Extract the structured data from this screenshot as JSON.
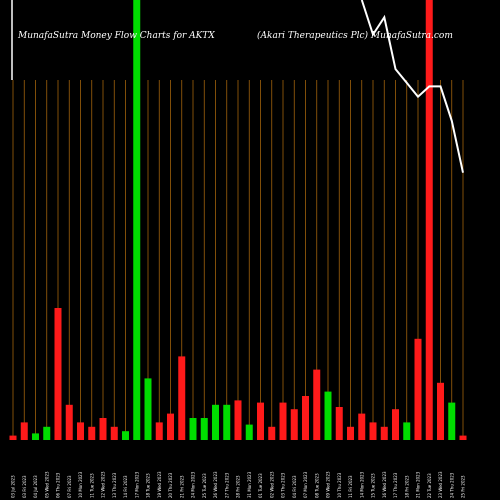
{
  "chart_data": {
    "type": "bar",
    "title_left": "MunafaSutra  Money Flow  Charts for AKTX",
    "title_right": "(Akari   Therapeutics Plc) MunafaSutra.com",
    "ylim": [
      0,
      100
    ],
    "grid": true,
    "colors": {
      "background": "#000000",
      "up": "#00dd00",
      "down": "#ff1a1a",
      "grid": "#a0620c",
      "line": "#ffffff"
    },
    "categories": [
      "03 Jul 2023",
      "03 Fri 2023",
      "04 Jul 2023",
      "05 Wed 2023",
      "06 Thu 2023",
      "07 Fri 2023",
      "10 Mon 2023",
      "11 Tue 2023",
      "12 Wed 2023",
      "13 Thu 2023",
      "14 Fri 2023",
      "17 Mon 2023",
      "18 Tue 2023",
      "19 Wed 2023",
      "20 Thu 2023",
      "21 Fri 2023",
      "24 Mon 2023",
      "25 Tue 2023",
      "26 Wed 2023",
      "27 Thu 2023",
      "28 Fri 2023",
      "31 Mon 2023",
      "01 Tue 2023",
      "02 Wed 2023",
      "03 Thu 2023",
      "04 Fri 2023",
      "07 Mon 2023",
      "08 Tue 2023",
      "09 Wed 2023",
      "10 Thu 2023",
      "11 Fri 2023",
      "14 Mon 2023",
      "15 Tue 2023",
      "16 Wed 2023",
      "17 Thu 2023",
      "18 Fri 2023",
      "21 Mon 2023",
      "22 Tue 2023",
      "23 Wed 2023",
      "24 Thu 2023",
      "25 Fri 2023"
    ],
    "values": [
      1,
      4,
      1.5,
      3,
      30,
      8,
      4,
      3,
      5,
      3,
      2,
      100,
      14,
      4,
      6,
      19,
      5,
      5,
      8,
      8,
      9,
      3.5,
      8.5,
      3,
      8.5,
      7,
      10,
      16,
      11,
      7.5,
      3,
      6,
      4,
      3,
      7,
      4,
      23,
      100,
      13,
      8.5,
      1
    ],
    "colors_per_bar": [
      "down",
      "down",
      "up",
      "up",
      "down",
      "down",
      "down",
      "down",
      "down",
      "down",
      "up",
      "up",
      "up",
      "down",
      "down",
      "down",
      "up",
      "up",
      "up",
      "up",
      "down",
      "up",
      "down",
      "down",
      "down",
      "down",
      "down",
      "down",
      "up",
      "down",
      "down",
      "down",
      "down",
      "down",
      "down",
      "up",
      "down",
      "down",
      "down",
      "up",
      "down"
    ],
    "line_series": {
      "values": [
        null,
        null,
        null,
        null,
        null,
        null,
        null,
        null,
        null,
        null,
        null,
        null,
        null,
        null,
        null,
        null,
        null,
        null,
        null,
        null,
        null,
        null,
        null,
        null,
        null,
        null,
        null,
        null,
        null,
        null,
        null,
        110,
        100,
        105,
        90,
        86,
        82,
        85,
        85,
        75,
        60
      ]
    }
  }
}
